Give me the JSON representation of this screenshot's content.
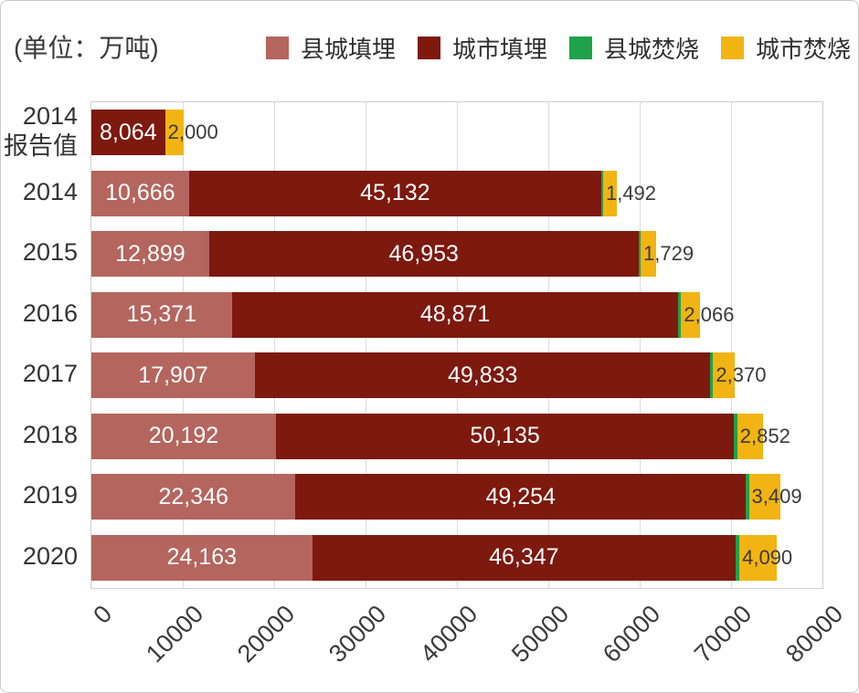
{
  "header": {
    "unit_label": "(单位：万吨)"
  },
  "chart_data": {
    "type": "bar",
    "orientation": "horizontal",
    "stacked": true,
    "unit_label": "(单位：万吨)",
    "legend_position": "top-right",
    "grid": true,
    "xlim": [
      0,
      80000
    ],
    "x_ticks": [
      "0",
      "10000",
      "20000",
      "30000",
      "40000",
      "50000",
      "60000",
      "70000",
      "80000"
    ],
    "categories": [
      "2014\n报告值",
      "2014",
      "2015",
      "2016",
      "2017",
      "2018",
      "2019",
      "2020"
    ],
    "series": [
      {
        "name": "县城填埋",
        "slug": "county-landfill",
        "color": "#b4655e",
        "label_color": "#ffffff",
        "label_inside": true,
        "values": [
          0,
          10666,
          12899,
          15371,
          17907,
          20192,
          22346,
          24163
        ],
        "labels": [
          "",
          "10,666",
          "12,899",
          "15,371",
          "17,907",
          "20,192",
          "22,346",
          "24,163"
        ]
      },
      {
        "name": "城市填埋",
        "slug": "city-landfill",
        "color": "#7d190f",
        "label_color": "#ffffff",
        "label_inside": true,
        "values": [
          8064,
          45132,
          46953,
          48871,
          49833,
          50135,
          49254,
          46347
        ],
        "labels": [
          "8,064",
          "45,132",
          "46,953",
          "48,871",
          "49,833",
          "50,135",
          "49,254",
          "46,347"
        ]
      },
      {
        "name": "县城焚烧",
        "slug": "county-incineration",
        "color": "#1fa24a",
        "label_inside": true,
        "values_estimated_from_pixels": true,
        "values": [
          0,
          200,
          250,
          300,
          300,
          350,
          350,
          400
        ],
        "labels": [
          "",
          "",
          "",
          "",
          "",
          "",
          "",
          ""
        ]
      },
      {
        "name": "城市焚烧",
        "slug": "city-incineration",
        "color": "#f2b412",
        "label_color": "#3a3a3a",
        "label_inside": false,
        "values": [
          2000,
          1492,
          1729,
          2066,
          2370,
          2852,
          3409,
          4090
        ],
        "labels": [
          "2,000",
          "1,492",
          "1,729",
          "2,066",
          "2,370",
          "2,852",
          "3,409",
          "4,090"
        ]
      }
    ]
  }
}
